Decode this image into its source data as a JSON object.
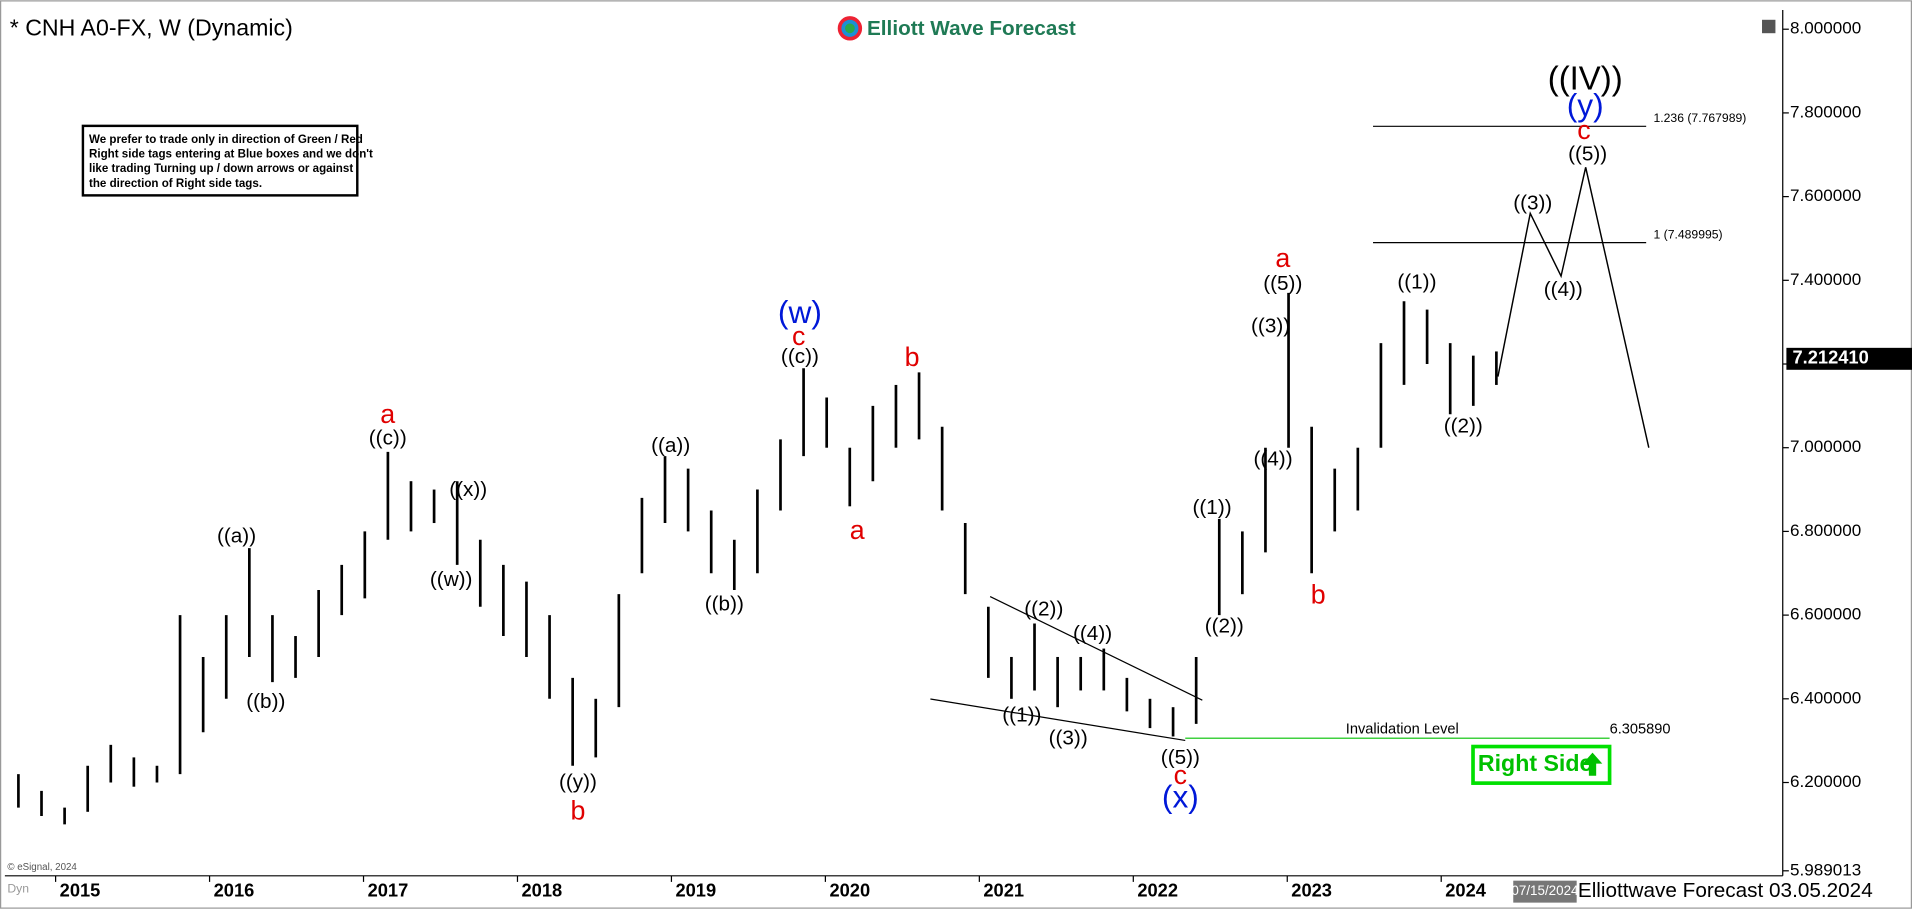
{
  "chart_data": {
    "type": "ohlc",
    "title": "* CNH A0-FX, W (Dynamic)",
    "brand": "Elliott Wave Forecast",
    "note": [
      "We prefer to trade only in direction of Green / Red",
      "Right side tags entering at Blue boxes and we don't",
      "like trading Turning up / down arrows or against",
      "the direction of Right side tags."
    ],
    "x": [
      2014.6,
      2014.75,
      2014.9,
      2015.05,
      2015.2,
      2015.35,
      2015.5,
      2015.65,
      2015.8,
      2015.95,
      2016.1,
      2016.25,
      2016.4,
      2016.55,
      2016.7,
      2016.85,
      2017.0,
      2017.15,
      2017.3,
      2017.45,
      2017.6,
      2017.75,
      2017.9,
      2018.05,
      2018.2,
      2018.35,
      2018.5,
      2018.65,
      2018.8,
      2018.95,
      2019.1,
      2019.25,
      2019.4,
      2019.55,
      2019.7,
      2019.85,
      2020.0,
      2020.15,
      2020.3,
      2020.45,
      2020.6,
      2020.75,
      2020.9,
      2021.05,
      2021.2,
      2021.35,
      2021.5,
      2021.65,
      2021.8,
      2021.95,
      2022.1,
      2022.25,
      2022.4,
      2022.55,
      2022.7,
      2022.85,
      2023.0,
      2023.15,
      2023.3,
      2023.45,
      2023.6,
      2023.75,
      2023.9,
      2024.05,
      2024.2
    ],
    "high": [
      6.22,
      6.18,
      6.14,
      6.24,
      6.29,
      6.26,
      6.24,
      6.6,
      6.5,
      6.6,
      6.76,
      6.6,
      6.55,
      6.66,
      6.72,
      6.8,
      6.99,
      6.92,
      6.9,
      6.92,
      6.78,
      6.72,
      6.68,
      6.6,
      6.45,
      6.4,
      6.65,
      6.88,
      6.98,
      6.95,
      6.85,
      6.78,
      6.9,
      7.02,
      7.19,
      7.12,
      7.0,
      7.1,
      7.15,
      7.18,
      7.05,
      6.82,
      6.62,
      6.5,
      6.58,
      6.5,
      6.5,
      6.52,
      6.45,
      6.4,
      6.38,
      6.5,
      6.83,
      6.8,
      7.0,
      7.37,
      7.05,
      6.95,
      7.0,
      7.25,
      7.35,
      7.33,
      7.25,
      7.22,
      7.23
    ],
    "low": [
      6.14,
      6.12,
      6.1,
      6.13,
      6.2,
      6.19,
      6.2,
      6.22,
      6.32,
      6.4,
      6.5,
      6.44,
      6.45,
      6.5,
      6.6,
      6.64,
      6.78,
      6.8,
      6.82,
      6.72,
      6.62,
      6.55,
      6.5,
      6.4,
      6.24,
      6.26,
      6.38,
      6.7,
      6.82,
      6.8,
      6.7,
      6.66,
      6.7,
      6.85,
      6.98,
      7.0,
      6.86,
      6.92,
      7.0,
      7.02,
      6.85,
      6.65,
      6.45,
      6.4,
      6.42,
      6.38,
      6.42,
      6.42,
      6.37,
      6.33,
      6.31,
      6.34,
      6.6,
      6.65,
      6.75,
      7.0,
      6.7,
      6.8,
      6.85,
      7.0,
      7.15,
      7.2,
      7.08,
      7.1,
      7.15
    ],
    "color": "#000000",
    "xlim": [
      2014.52,
      2026.06
    ],
    "xticks": [
      2015,
      2016,
      2017,
      2018,
      2019,
      2020,
      2021,
      2022,
      2023,
      2024
    ],
    "ylim": [
      5.98,
      8.04
    ],
    "yticks": [
      {
        "value": 5.989013,
        "label": "5.989013"
      },
      {
        "value": 6.2,
        "label": "6.200000"
      },
      {
        "value": 6.4,
        "label": "6.400000"
      },
      {
        "value": 6.6,
        "label": "6.600000"
      },
      {
        "value": 6.8,
        "label": "6.800000"
      },
      {
        "value": 7,
        "label": "7.000000"
      },
      {
        "value": 7.2,
        "label": "7.200000"
      },
      {
        "value": 7.4,
        "label": "7.400000"
      },
      {
        "value": 7.6,
        "label": "7.600000"
      },
      {
        "value": 7.8,
        "label": "7.800000"
      },
      {
        "value": 8,
        "label": "8.000000"
      }
    ],
    "last_price": {
      "value": 7.21241,
      "label": "7.212410"
    },
    "projection": {
      "x": [
        2024.21,
        2024.42,
        2024.62,
        2024.78,
        2025.19
      ],
      "values": [
        7.17,
        7.56,
        7.41,
        7.67,
        7.0
      ]
    },
    "fib_levels": [
      {
        "value": 7.767989,
        "label": "1.236 (7.767989)"
      },
      {
        "value": 7.489995,
        "label": "1 (7.489995)"
      }
    ],
    "invalidation": {
      "label": "Invalidation Level",
      "value": 6.30589,
      "value_label": "6.305890",
      "color": "#00c000"
    },
    "right_side": "Right Side",
    "wave_labels": [
      "((a))",
      "((b))",
      "((c))",
      "((x))",
      "((w))",
      "((y))",
      "((a))",
      "((b))",
      "((c))",
      "((2))",
      "((4))",
      "((1))",
      "((3))",
      "((5))",
      "((1))",
      "((2))",
      "((3))",
      "((5))",
      "((4))",
      "((1))",
      "((2))",
      "((3))",
      "((4))",
      "((5))",
      "((IV))",
      "a",
      "c",
      "a",
      "b",
      "b",
      "a",
      "b",
      "c",
      "c",
      "(w)",
      "(x)",
      "(y)"
    ],
    "cursor_date": "07/15/2024",
    "footer": "Elliottwave Forecast 03.05.2024",
    "copyright": "© eSignal, 2024",
    "mode": "Dyn"
  }
}
